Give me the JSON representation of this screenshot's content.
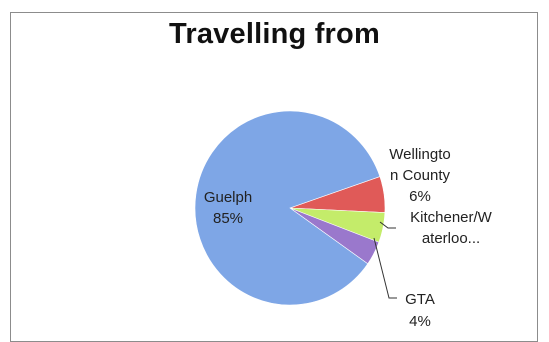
{
  "chart_data": {
    "type": "pie",
    "title": "Travelling from",
    "slices": [
      {
        "label": "Guelph",
        "label_lines": [
          "Guelph",
          "85%"
        ],
        "value": 85,
        "percent_label": "85%",
        "color": "#7ea6e6"
      },
      {
        "label": "Wellington County",
        "label_lines": [
          "Wellingto",
          "n County",
          "6%"
        ],
        "value": 6,
        "percent_label": "6%",
        "color": "#e05a58"
      },
      {
        "label": "Kitchener/Waterloo...",
        "label_lines": [
          "Kitchener/W",
          "aterloo..."
        ],
        "value": 5,
        "percent_label": "",
        "color": "#c4ec6a"
      },
      {
        "label": "GTA",
        "label_lines": [
          "GTA",
          "4%"
        ],
        "value": 4,
        "percent_label": "4%",
        "color": "#9a78cc"
      }
    ],
    "legend": "none"
  }
}
